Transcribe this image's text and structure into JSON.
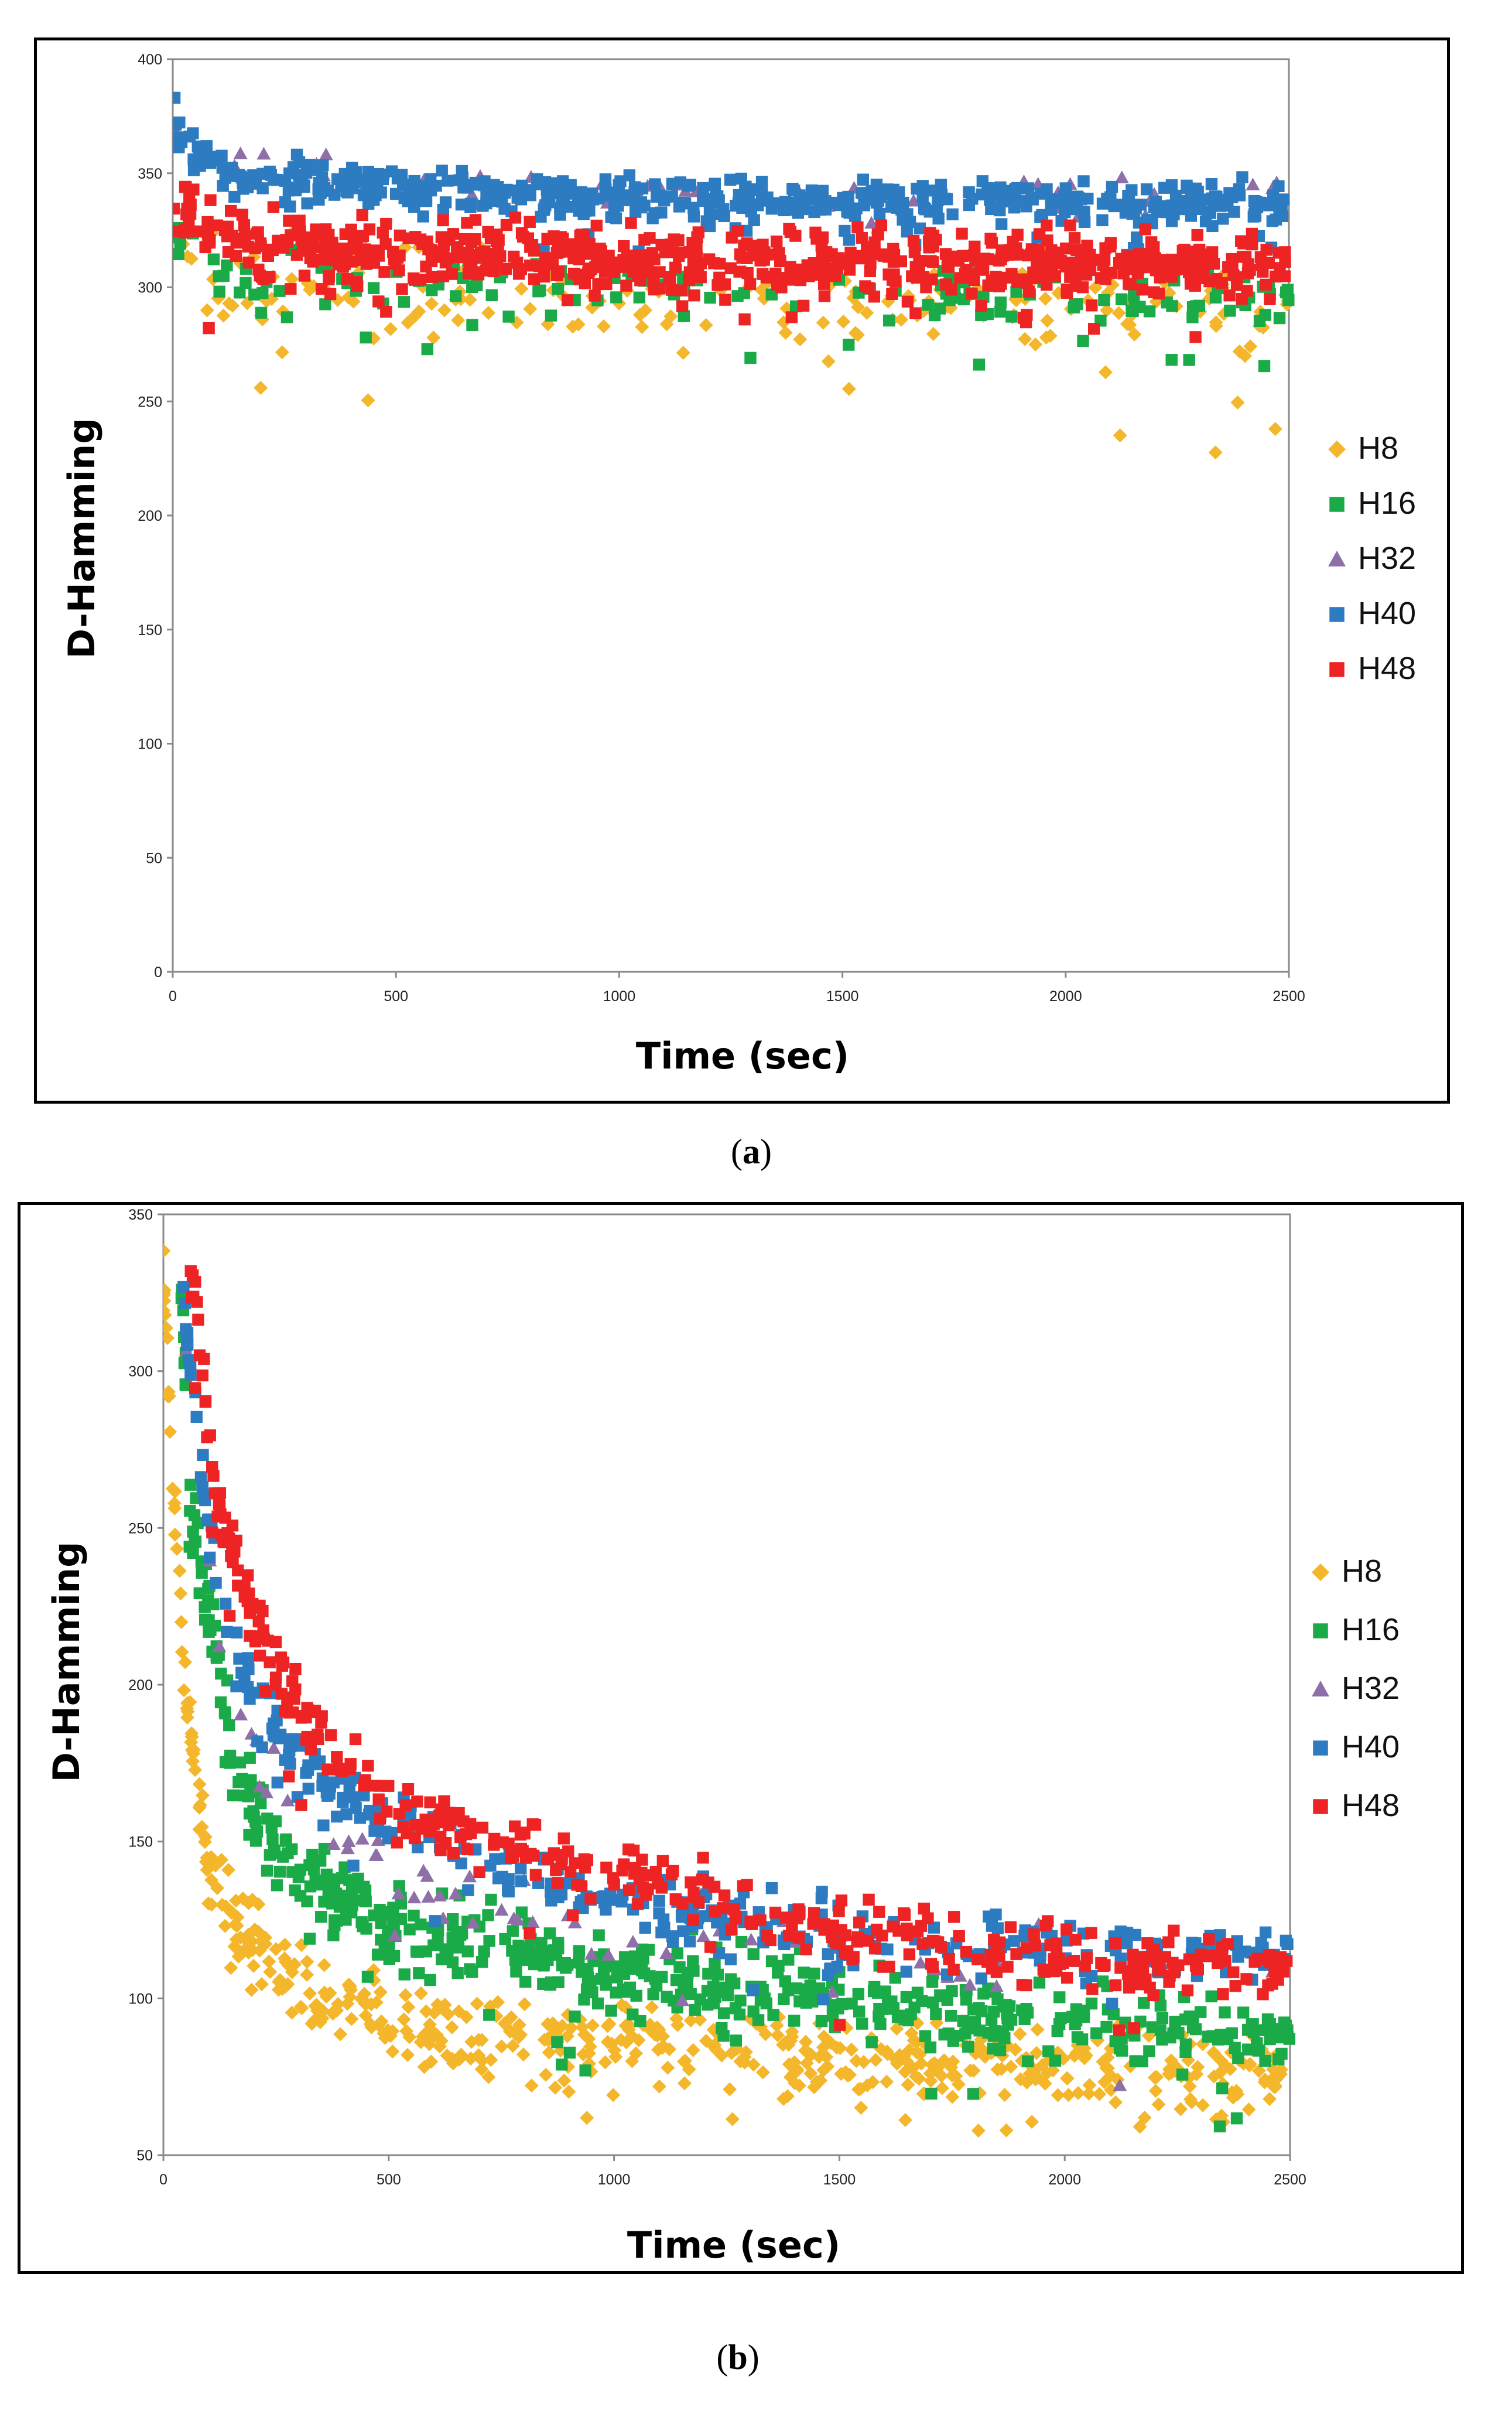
{
  "colors": {
    "H8": "#f4b62b",
    "H16": "#1aaa48",
    "H32": "#8e6fa8",
    "H40": "#2d7bc0",
    "H48": "#ee2424"
  },
  "chart_data": [
    {
      "panel": "a",
      "caption_open": "(",
      "caption_letter": "a",
      "caption_close": ")",
      "type": "scatter",
      "title": "",
      "xlabel": "Time (sec)",
      "ylabel": "D-Hamming",
      "xlim": [
        0,
        2500
      ],
      "ylim": [
        0,
        400
      ],
      "x_ticks": [
        "0",
        "500",
        "1000",
        "1500",
        "2000",
        "2500"
      ],
      "y_ticks": [
        "0",
        "50",
        "100",
        "150",
        "200",
        "250",
        "300",
        "350",
        "400"
      ],
      "legend_position": "right",
      "series": [
        {
          "name": "H8",
          "marker": "diamond",
          "trend": [
            [
              0,
              330
            ],
            [
              100,
              300
            ],
            [
              500,
              298
            ],
            [
              1000,
              296
            ],
            [
              1500,
              295
            ],
            [
              2000,
              294
            ],
            [
              2500,
              293
            ]
          ],
          "spread": 22
        },
        {
          "name": "H16",
          "marker": "square",
          "trend": [
            [
              0,
              320
            ],
            [
              100,
              305
            ],
            [
              500,
              300
            ],
            [
              1000,
              298
            ],
            [
              1500,
              297
            ],
            [
              2000,
              296
            ],
            [
              2500,
              296
            ]
          ],
          "spread": 12
        },
        {
          "name": "H32",
          "marker": "triangle",
          "trend": [
            [
              0,
              370
            ],
            [
              100,
              355
            ],
            [
              500,
              348
            ],
            [
              1000,
              343
            ],
            [
              1500,
              341
            ],
            [
              2000,
              340
            ],
            [
              2500,
              340
            ]
          ],
          "spread": 9
        },
        {
          "name": "H40",
          "marker": "square",
          "trend": [
            [
              0,
              372
            ],
            [
              100,
              350
            ],
            [
              500,
              343
            ],
            [
              1000,
              339
            ],
            [
              1500,
              338
            ],
            [
              2000,
              337
            ],
            [
              2500,
              336
            ]
          ],
          "spread": 9
        },
        {
          "name": "H48",
          "marker": "square",
          "trend": [
            [
              0,
              340
            ],
            [
              100,
              320
            ],
            [
              500,
              315
            ],
            [
              1000,
              312
            ],
            [
              1500,
              310
            ],
            [
              2000,
              309
            ],
            [
              2500,
              308
            ]
          ],
          "spread": 14
        }
      ]
    },
    {
      "panel": "b",
      "caption_open": "(",
      "caption_letter": "b",
      "caption_close": ")",
      "type": "scatter",
      "title": "",
      "xlabel": "Time (sec)",
      "ylabel": "D-Hamming",
      "xlim": [
        0,
        2500
      ],
      "ylim": [
        50,
        350
      ],
      "x_ticks": [
        "0",
        "500",
        "1000",
        "1500",
        "2000",
        "2500"
      ],
      "y_ticks": [
        "50",
        "100",
        "150",
        "200",
        "250",
        "300",
        "350"
      ],
      "legend_position": "right",
      "series": [
        {
          "name": "H8",
          "marker": "diamond",
          "trend": [
            [
              0,
              330
            ],
            [
              20,
              270
            ],
            [
              50,
              200
            ],
            [
              100,
              140
            ],
            [
              200,
              115
            ],
            [
              300,
              105
            ],
            [
              500,
              92
            ],
            [
              1000,
              85
            ],
            [
              1500,
              82
            ],
            [
              2000,
              78
            ],
            [
              2500,
              75
            ]
          ],
          "spread": 12
        },
        {
          "name": "H16",
          "marker": "square",
          "trend": [
            [
              40,
              330
            ],
            [
              60,
              260
            ],
            [
              100,
              225
            ],
            [
              150,
              180
            ],
            [
              200,
              160
            ],
            [
              300,
              140
            ],
            [
              500,
              125
            ],
            [
              1000,
              108
            ],
            [
              1500,
              100
            ],
            [
              2000,
              92
            ],
            [
              2500,
              88
            ]
          ],
          "spread": 12
        },
        {
          "name": "H32",
          "marker": "triangle",
          "trend": [
            [
              40,
              330
            ],
            [
              60,
              285
            ],
            [
              100,
              245
            ],
            [
              150,
              200
            ],
            [
              200,
              180
            ],
            [
              300,
              160
            ],
            [
              500,
              140
            ],
            [
              1000,
              120
            ],
            [
              1500,
              112
            ],
            [
              2000,
              110
            ],
            [
              2500,
              108
            ]
          ],
          "spread": 12
        },
        {
          "name": "H40",
          "marker": "square",
          "trend": [
            [
              40,
              335
            ],
            [
              60,
              300
            ],
            [
              100,
              255
            ],
            [
              150,
              215
            ],
            [
              200,
              195
            ],
            [
              300,
              175
            ],
            [
              500,
              155
            ],
            [
              1000,
              130
            ],
            [
              1500,
              120
            ],
            [
              2000,
              115
            ],
            [
              2500,
              112
            ]
          ],
          "spread": 10
        },
        {
          "name": "H48",
          "marker": "square",
          "trend": [
            [
              60,
              330
            ],
            [
              80,
              310
            ],
            [
              120,
              260
            ],
            [
              200,
              220
            ],
            [
              300,
              190
            ],
            [
              500,
              160
            ],
            [
              1000,
              140
            ],
            [
              1500,
              120
            ],
            [
              2000,
              112
            ],
            [
              2500,
              108
            ]
          ],
          "spread": 10
        }
      ]
    }
  ]
}
